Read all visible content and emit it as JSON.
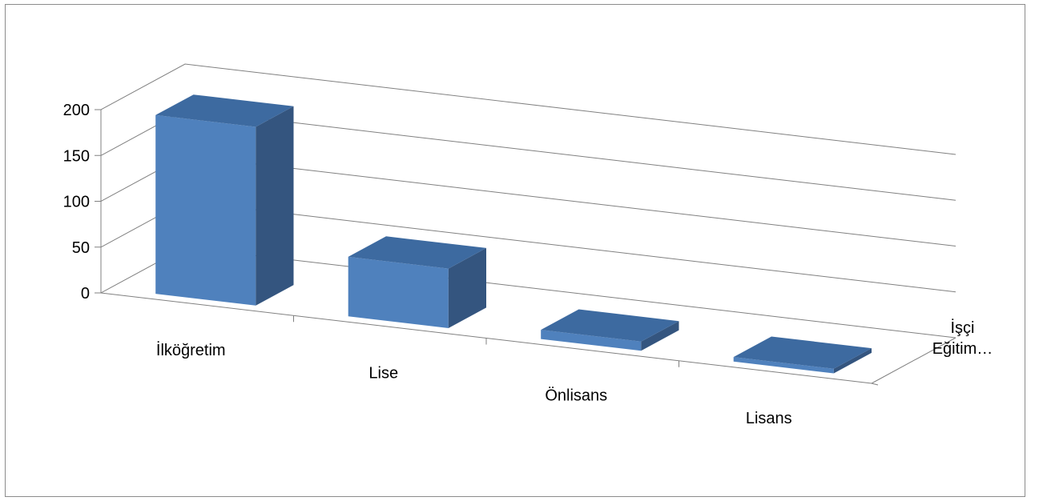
{
  "chart_data": {
    "type": "bar",
    "style": "3d-column",
    "categories": [
      "İlköğretim",
      "Lise",
      "Önlisans",
      "Lisans"
    ],
    "series": [
      {
        "name": "İşçi Eğitim…",
        "values": [
          195,
          65,
          10,
          5
        ]
      }
    ],
    "ylim": [
      0,
      200
    ],
    "yticks": [
      0,
      50,
      100,
      150,
      200
    ],
    "grid": true,
    "legend": "none"
  },
  "colors": {
    "bar_front": "#4f81bd",
    "bar_top": "#3d6aa0",
    "bar_side": "#34557f",
    "gridline": "#808080",
    "axis": "#808080"
  }
}
